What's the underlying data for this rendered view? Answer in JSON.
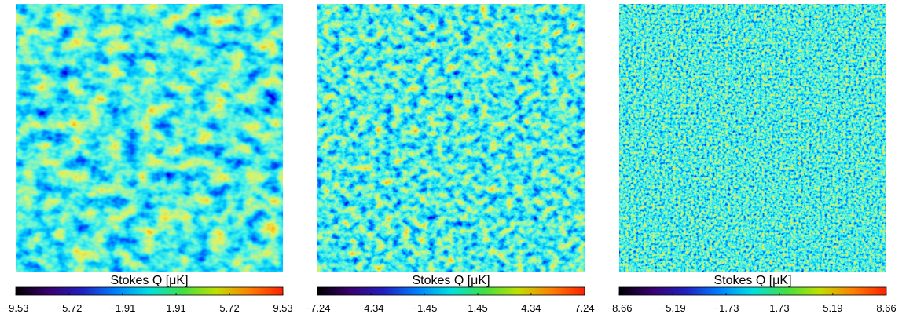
{
  "chart_data": [
    {
      "type": "heatmap",
      "colorbar": {
        "label": "Stokes Q [μK]",
        "lim": [
          -9.53,
          9.53
        ],
        "ticks": [
          {
            "value": -9.53,
            "label": "−9.53"
          },
          {
            "value": -5.72,
            "label": "−5.72"
          },
          {
            "value": -1.91,
            "label": "−1.91"
          },
          1.91,
          5.72,
          9.53
        ],
        "colormap": [
          "#000000",
          "#3a0070",
          "#2020c0",
          "#0080ff",
          "#00e0e0",
          "#40e040",
          "#c0e000",
          "#ff8000",
          "#ff2000"
        ]
      }
    },
    {
      "type": "heatmap",
      "colorbar": {
        "label": "Stokes Q [μK]",
        "lim": [
          -7.24,
          7.24
        ],
        "ticks": [
          {
            "value": -7.24,
            "label": "−7.24"
          },
          {
            "value": -4.34,
            "label": "−4.34"
          },
          {
            "value": -1.45,
            "label": "−1.45"
          },
          1.45,
          4.34,
          7.24
        ],
        "colormap": [
          "#000000",
          "#3a0070",
          "#2020c0",
          "#0080ff",
          "#00e0e0",
          "#40e040",
          "#c0e000",
          "#ff8000",
          "#ff2000"
        ]
      }
    },
    {
      "type": "heatmap",
      "colorbar": {
        "label": "Stokes Q [μK]",
        "lim": [
          -8.66,
          8.66
        ],
        "ticks": [
          {
            "value": -8.66,
            "label": "−8.66"
          },
          {
            "value": -5.19,
            "label": "−5.19"
          },
          {
            "value": -1.73,
            "label": "−1.73"
          },
          1.73,
          5.19,
          8.66
        ],
        "colormap": [
          "#000000",
          "#3a0070",
          "#2020c0",
          "#0080ff",
          "#00e0e0",
          "#40e040",
          "#c0e000",
          "#ff8000",
          "#ff2000"
        ]
      }
    }
  ]
}
